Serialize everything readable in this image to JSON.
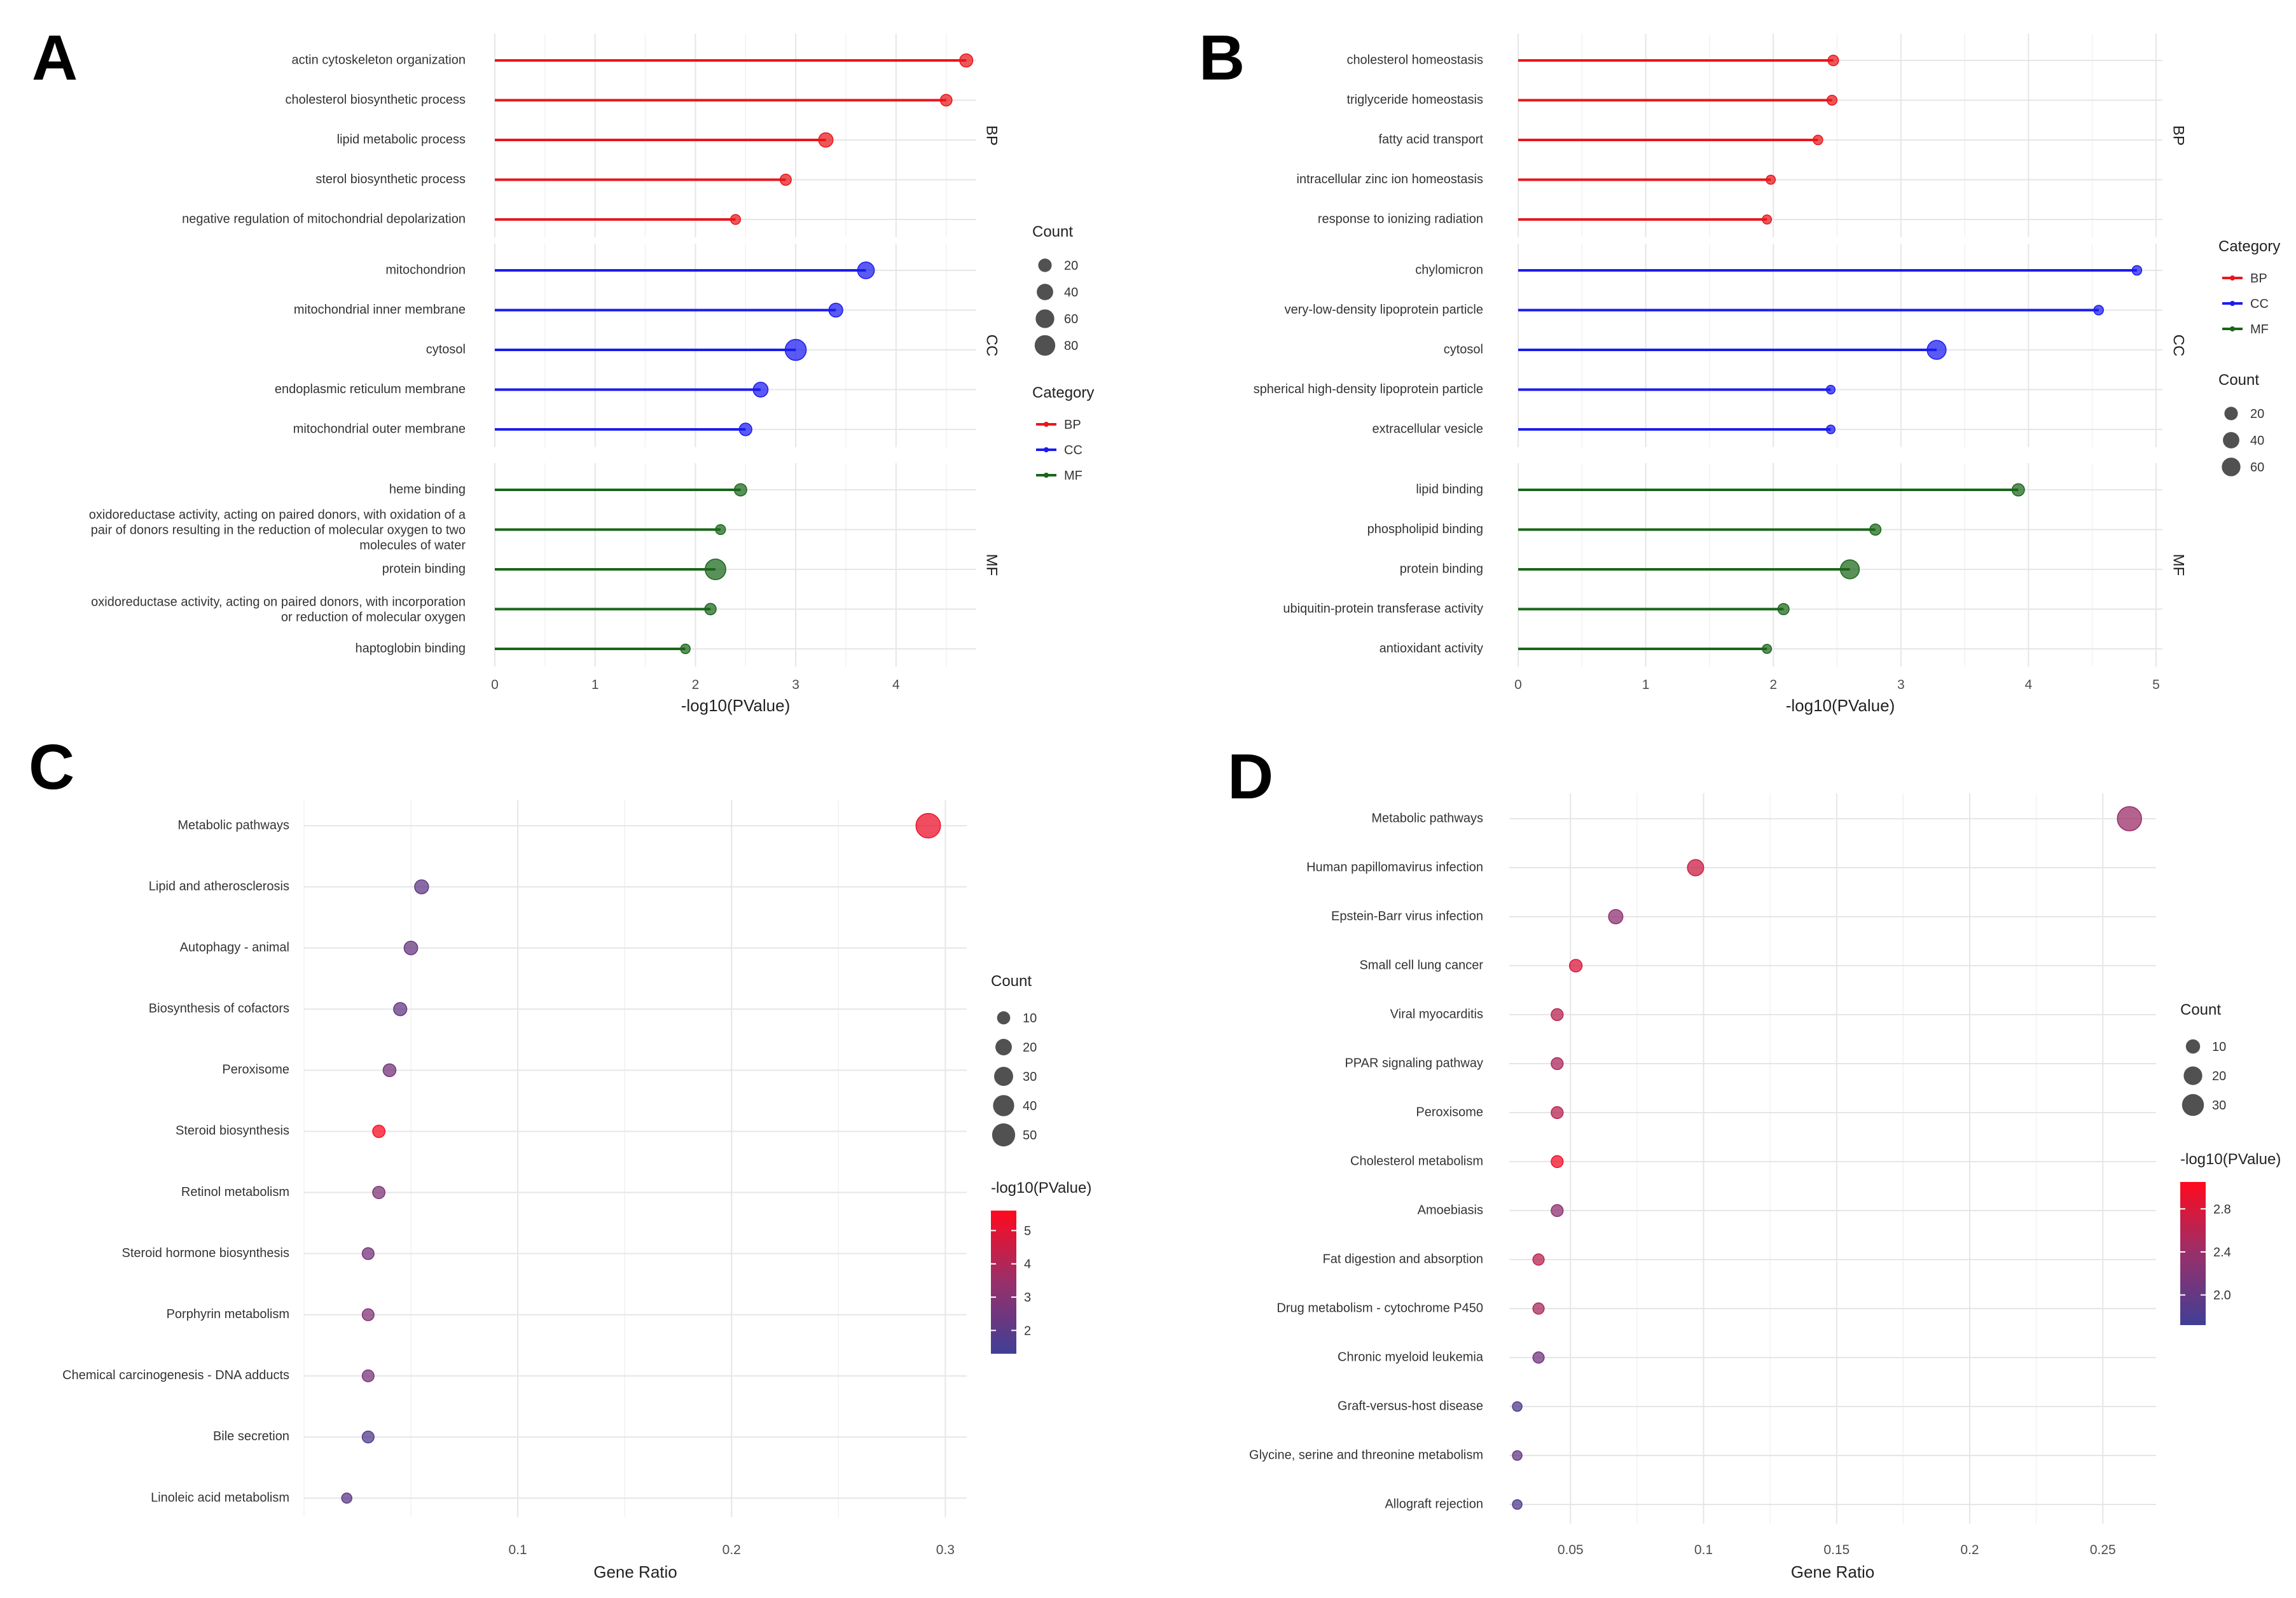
{
  "chart_data": [
    {
      "panel": "A",
      "type": "lollipop",
      "xlabel": "-log10(PValue)",
      "xlim": [
        0,
        4.8
      ],
      "xticks": [
        0,
        1,
        2,
        3,
        4
      ],
      "facets": [
        {
          "name": "BP",
          "color": "#e8161b",
          "terms": [
            {
              "label": "actin cytoskeleton organization",
              "value": 4.7,
              "count": 18
            },
            {
              "label": "cholesterol biosynthetic process",
              "value": 4.5,
              "count": 11
            },
            {
              "label": "lipid metabolic process",
              "value": 3.3,
              "count": 25
            },
            {
              "label": "sterol biosynthetic process",
              "value": 2.9,
              "count": 9
            },
            {
              "label": "negative regulation of mitochondrial depolarization",
              "value": 2.4,
              "count": 5
            }
          ]
        },
        {
          "name": "CC",
          "color": "#1b1bf0",
          "terms": [
            {
              "label": "mitochondrion",
              "value": 3.7,
              "count": 42
            },
            {
              "label": "mitochondrial inner membrane",
              "value": 3.4,
              "count": 22
            },
            {
              "label": "cytosol",
              "value": 3.0,
              "count": 85
            },
            {
              "label": "endoplasmic reticulum membrane",
              "value": 2.65,
              "count": 28
            },
            {
              "label": "mitochondrial outer membrane",
              "value": 2.5,
              "count": 15
            }
          ]
        },
        {
          "name": "MF",
          "color": "#1a661a",
          "terms": [
            {
              "label": "heme binding",
              "value": 2.45,
              "count": 14
            },
            {
              "label": [
                "oxidoreductase activity, acting on paired donors, with oxidation of a",
                "pair of donors resulting in the reduction of molecular oxygen to two",
                "molecules of water"
              ],
              "value": 2.25,
              "count": 5
            },
            {
              "label": "protein binding",
              "value": 2.2,
              "count": 80
            },
            {
              "label": [
                "oxidoreductase activity, acting on paired donors, with incorporation",
                "or reduction of molecular oxygen"
              ],
              "value": 2.15,
              "count": 10
            },
            {
              "label": "haptoglobin binding",
              "value": 1.9,
              "count": 4
            }
          ]
        }
      ],
      "legends": {
        "count": {
          "title": "Count",
          "values": [
            20,
            40,
            60,
            80
          ]
        },
        "category": {
          "title": "Category",
          "items": [
            "BP",
            "CC",
            "MF"
          ]
        }
      }
    },
    {
      "panel": "B",
      "type": "lollipop",
      "xlabel": "-log10(PValue)",
      "xlim": [
        0,
        5.05
      ],
      "xticks": [
        0,
        1,
        2,
        3,
        4,
        5
      ],
      "facets": [
        {
          "name": "BP",
          "color": "#e8161b",
          "terms": [
            {
              "label": "cholesterol homeostasis",
              "value": 2.47,
              "count": 7
            },
            {
              "label": "triglyceride homeostasis",
              "value": 2.46,
              "count": 5
            },
            {
              "label": "fatty acid transport",
              "value": 2.35,
              "count": 4
            },
            {
              "label": "intracellular zinc ion homeostasis",
              "value": 1.98,
              "count": 3
            },
            {
              "label": "response to ionizing radiation",
              "value": 1.95,
              "count": 3
            }
          ]
        },
        {
          "name": "CC",
          "color": "#1b1bf0",
          "terms": [
            {
              "label": "chylomicron",
              "value": 4.85,
              "count": 4
            },
            {
              "label": "very-low-density lipoprotein particle",
              "value": 4.55,
              "count": 4
            },
            {
              "label": "cytosol",
              "value": 3.28,
              "count": 62
            },
            {
              "label": "spherical high-density lipoprotein particle",
              "value": 2.45,
              "count": 2
            },
            {
              "label": "extracellular vesicle",
              "value": 2.45,
              "count": 2
            }
          ]
        },
        {
          "name": "MF",
          "color": "#1a661a",
          "terms": [
            {
              "label": "lipid binding",
              "value": 3.92,
              "count": 14
            },
            {
              "label": "phospholipid binding",
              "value": 2.8,
              "count": 9
            },
            {
              "label": "protein binding",
              "value": 2.6,
              "count": 62
            },
            {
              "label": "ubiquitin-protein transferase activity",
              "value": 2.08,
              "count": 9
            },
            {
              "label": "antioxidant activity",
              "value": 1.95,
              "count": 3
            }
          ]
        }
      ],
      "legends": {
        "category": {
          "title": "Category",
          "items": [
            "BP",
            "CC",
            "MF"
          ]
        },
        "count": {
          "title": "Count",
          "values": [
            20,
            40,
            60
          ]
        }
      }
    },
    {
      "panel": "C",
      "type": "scatter",
      "xlabel": "Gene Ratio",
      "xlim": [
        0.0,
        0.31
      ],
      "xticks": [
        0.1,
        0.2,
        0.3
      ],
      "color_range": [
        1.3,
        5.6
      ],
      "colorbar_ticks": [
        2,
        3,
        4,
        5
      ],
      "terms": [
        {
          "label": "Metabolic pathways",
          "x": 0.292,
          "count": 58,
          "p": 5.2
        },
        {
          "label": "Lipid and atherosclerosis",
          "x": 0.055,
          "count": 12,
          "p": 2.1
        },
        {
          "label": "Autophagy - animal",
          "x": 0.05,
          "count": 11,
          "p": 2.3
        },
        {
          "label": "Biosynthesis of cofactors",
          "x": 0.045,
          "count": 10,
          "p": 2.2
        },
        {
          "label": "Peroxisome",
          "x": 0.04,
          "count": 9,
          "p": 2.6
        },
        {
          "label": "Steroid biosynthesis",
          "x": 0.035,
          "count": 8,
          "p": 5.5
        },
        {
          "label": "Retinol metabolism",
          "x": 0.035,
          "count": 8,
          "p": 2.8
        },
        {
          "label": "Steroid hormone biosynthesis",
          "x": 0.03,
          "count": 7,
          "p": 2.6
        },
        {
          "label": "Porphyrin metabolism",
          "x": 0.03,
          "count": 7,
          "p": 2.9
        },
        {
          "label": "Chemical carcinogenesis - DNA adducts",
          "x": 0.03,
          "count": 7,
          "p": 2.7
        },
        {
          "label": "Bile secretion",
          "x": 0.03,
          "count": 7,
          "p": 1.7
        },
        {
          "label": "Linoleic acid metabolism",
          "x": 0.02,
          "count": 4,
          "p": 2.0
        }
      ],
      "legends": {
        "count": {
          "title": "Count",
          "values": [
            10,
            20,
            30,
            40,
            50
          ]
        },
        "color": {
          "title": "-log10(PValue)"
        }
      }
    },
    {
      "panel": "D",
      "type": "scatter",
      "xlabel": "Gene Ratio",
      "xlim": [
        0.027,
        0.27
      ],
      "xticks": [
        0.05,
        0.1,
        0.15,
        0.2,
        0.25
      ],
      "color_range": [
        1.72,
        3.05
      ],
      "colorbar_ticks": [
        2.0,
        2.4,
        2.8
      ],
      "terms": [
        {
          "label": "Metabolic pathways",
          "x": 0.26,
          "count": 38,
          "p": 2.4
        },
        {
          "label": "Human papillomavirus infection",
          "x": 0.097,
          "count": 14,
          "p": 2.7
        },
        {
          "label": "Epstein-Barr virus infection",
          "x": 0.067,
          "count": 10,
          "p": 2.3
        },
        {
          "label": "Small cell lung cancer",
          "x": 0.052,
          "count": 7,
          "p": 2.8
        },
        {
          "label": "Viral myocarditis",
          "x": 0.045,
          "count": 6,
          "p": 2.6
        },
        {
          "label": "PPAR signaling pathway",
          "x": 0.045,
          "count": 6,
          "p": 2.5
        },
        {
          "label": "Peroxisome",
          "x": 0.045,
          "count": 6,
          "p": 2.6
        },
        {
          "label": "Cholesterol metabolism",
          "x": 0.045,
          "count": 6,
          "p": 2.95
        },
        {
          "label": "Amoebiasis",
          "x": 0.045,
          "count": 6,
          "p": 2.3
        },
        {
          "label": "Fat digestion and absorption",
          "x": 0.038,
          "count": 5,
          "p": 2.6
        },
        {
          "label": "Drug metabolism - cytochrome P450",
          "x": 0.038,
          "count": 5,
          "p": 2.5
        },
        {
          "label": "Chronic myeloid leukemia",
          "x": 0.038,
          "count": 5,
          "p": 2.1
        },
        {
          "label": "Graft-versus-host disease",
          "x": 0.03,
          "count": 3,
          "p": 1.85
        },
        {
          "label": "Glycine, serine and threonine metabolism",
          "x": 0.03,
          "count": 3,
          "p": 2.0
        },
        {
          "label": "Allograft rejection",
          "x": 0.03,
          "count": 3,
          "p": 1.85
        }
      ],
      "legends": {
        "count": {
          "title": "Count",
          "values": [
            10,
            20,
            30
          ]
        },
        "color": {
          "title": "-log10(PValue)"
        }
      }
    }
  ]
}
